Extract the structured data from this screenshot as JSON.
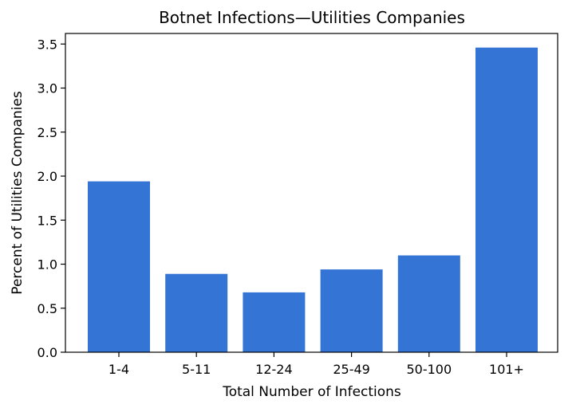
{
  "chart_data": {
    "type": "bar",
    "title": "Botnet Infections—Utilities Companies",
    "xlabel": "Total Number of Infections",
    "ylabel": "Percent of Utilities Companies",
    "categories": [
      "1-4",
      "5-11",
      "12-24",
      "25-49",
      "50-100",
      "101+"
    ],
    "values": [
      1.94,
      0.89,
      0.68,
      0.94,
      1.1,
      3.46
    ],
    "ylim": [
      0,
      3.62
    ],
    "yticks": [
      "0.0",
      "0.5",
      "1.0",
      "1.5",
      "2.0",
      "2.5",
      "3.0",
      "3.5"
    ],
    "bar_color": "#3474d4",
    "grid": false,
    "legend": false
  }
}
